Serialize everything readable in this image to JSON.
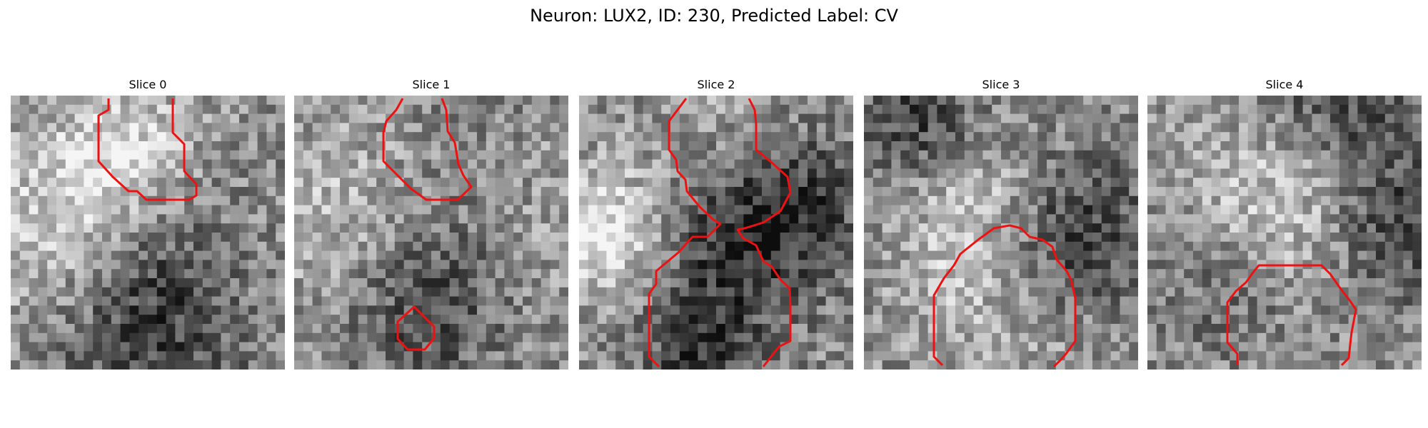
{
  "figure": {
    "title": "Neuron: LUX2, ID: 230, Predicted Label: CV"
  },
  "colors": {
    "contour": "#ee1111",
    "background": "#ffffff"
  },
  "slices": [
    {
      "title": "Slice 0"
    },
    {
      "title": "Slice 1"
    },
    {
      "title": "Slice 2"
    },
    {
      "title": "Slice 3"
    },
    {
      "title": "Slice 4"
    }
  ]
}
